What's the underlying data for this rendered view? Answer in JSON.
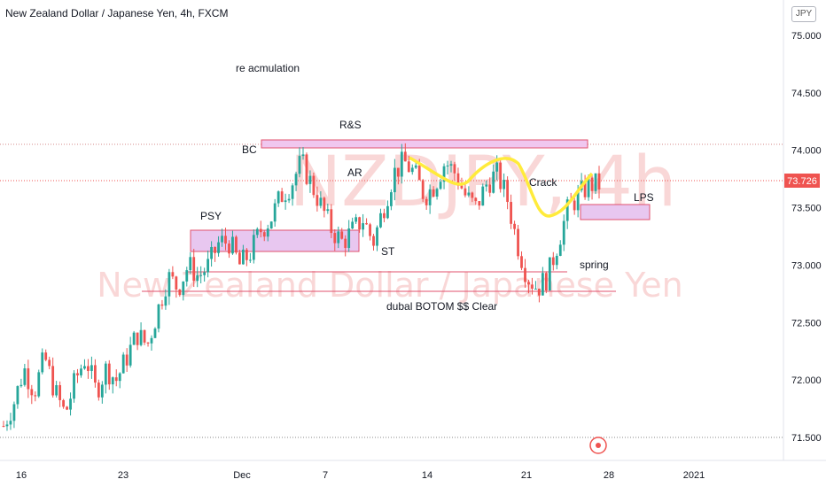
{
  "header": {
    "title": "New Zealand Dollar / Japanese Yen, 4h, FXCM",
    "currency": "JPY"
  },
  "watermark": {
    "symbol": "NZDJPY, 4h",
    "name": "New Zealand Dollar / Japanese Yen"
  },
  "chart_data": {
    "type": "candlestick",
    "yticks": [
      "75.000",
      "74.500",
      "74.000",
      "73.500",
      "73.000",
      "72.500",
      "72.000",
      "71.500"
    ],
    "xticks": [
      "16",
      "23",
      "Dec",
      "7",
      "14",
      "21",
      "28",
      "2021"
    ],
    "ylim": [
      71.4,
      75.05
    ],
    "last_price": "73.726",
    "colors": {
      "up": "#26a69a",
      "down": "#ef5350",
      "box": "#d39be6",
      "curve": "#ffeb3b"
    },
    "annotations": [
      "re acmulation",
      "R&S",
      "BC",
      "AR",
      "PSY",
      "ST",
      "Crack",
      "LPS",
      "spring",
      "dubal BOTOM $$ Clear"
    ],
    "levels": [
      74.04,
      73.726,
      71.5
    ],
    "zones": [
      {
        "label": "R&S",
        "top": 74.08,
        "bottom": 74.0
      },
      {
        "label": "PSY",
        "top": 73.28,
        "bottom": 73.1
      },
      {
        "label": "LPS",
        "top": 73.5,
        "bottom": 73.38
      }
    ],
    "close_path": [
      71.6,
      71.8,
      72.1,
      71.9,
      72.2,
      71.9,
      71.7,
      72.0,
      72.2,
      71.9,
      72.1,
      72.0,
      72.2,
      72.4,
      72.3,
      72.6,
      72.9,
      72.8,
      73.0,
      72.9,
      73.0,
      73.2,
      73.2,
      73.0,
      73.1,
      73.3,
      73.4,
      73.6,
      73.7,
      73.9,
      73.7,
      73.5,
      73.3,
      73.2,
      73.3,
      73.4,
      73.2,
      73.5,
      73.8,
      73.9,
      73.8,
      73.6,
      73.7,
      73.9,
      73.8,
      73.6,
      73.5,
      73.7,
      73.8,
      73.6,
      73.2,
      72.9,
      72.8,
      72.9,
      73.2,
      73.5,
      73.6,
      73.7,
      73.7
    ]
  }
}
